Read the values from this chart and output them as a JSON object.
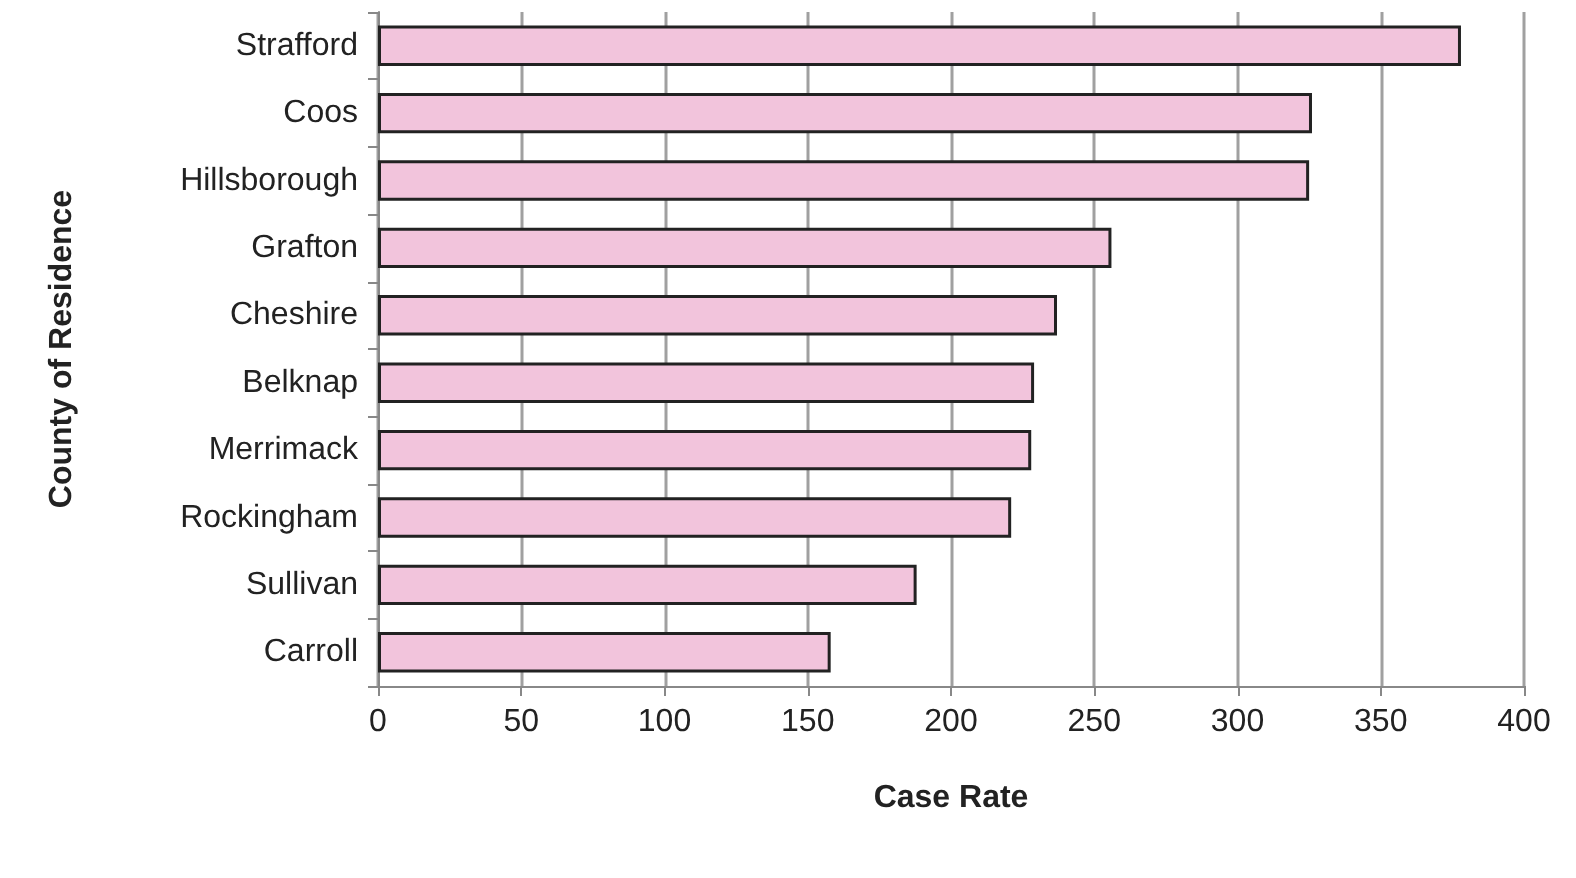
{
  "chart_data": {
    "type": "bar",
    "orientation": "horizontal",
    "xlabel": "Case Rate",
    "ylabel": "County of Residence",
    "categories": [
      "Strafford",
      "Coos",
      "Hillsborough",
      "Grafton",
      "Cheshire",
      "Belknap",
      "Merrimack",
      "Rockingham",
      "Sullivan",
      "Carroll"
    ],
    "values": [
      378,
      326,
      325,
      256,
      237,
      229,
      228,
      221,
      188,
      158
    ],
    "color": "#f2c4dc",
    "xlim": [
      0,
      400
    ],
    "xticks": [
      0,
      50,
      100,
      150,
      200,
      250,
      300,
      350,
      400
    ],
    "grid": "x"
  }
}
